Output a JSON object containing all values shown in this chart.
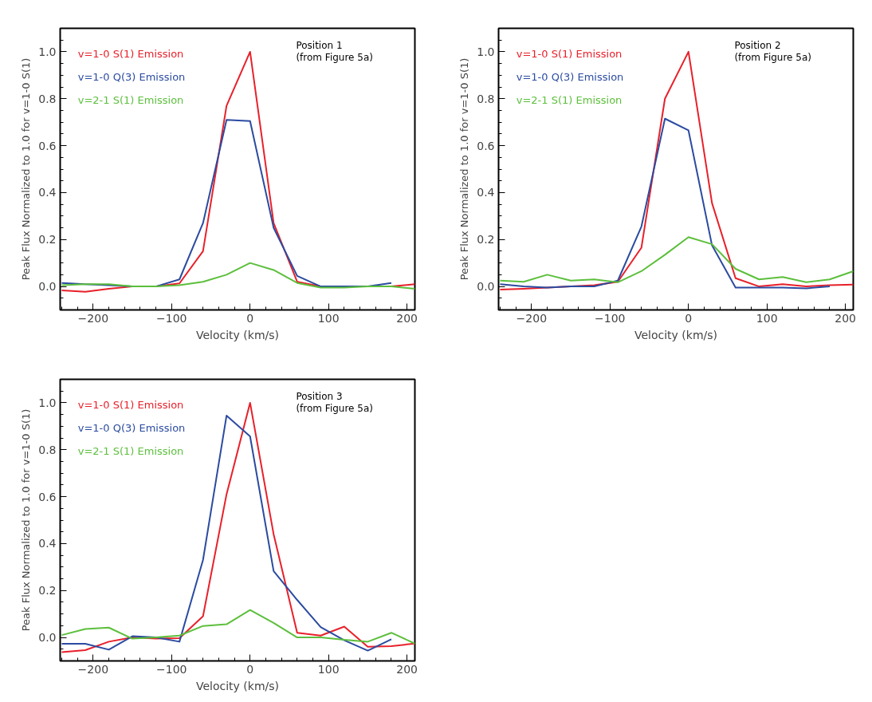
{
  "chart_data": [
    {
      "type": "line",
      "xlabel": "Velocity (km/s)",
      "ylabel": "Peak Flux Normalized to 1.0 for v=1-0 S(1)",
      "annotations": [
        "Position 1\n(from Figure 5a)"
      ],
      "legend": "top left",
      "x": [
        -240,
        -210,
        -180,
        -150,
        -120,
        -90,
        -60,
        -30,
        0,
        30,
        60,
        90,
        120,
        150,
        180,
        210
      ],
      "xlim": [
        -242,
        210
      ],
      "ylim": [
        -0.1,
        1.1
      ],
      "xticks": [
        -200,
        -100,
        0,
        100,
        200
      ],
      "yticks": [
        {
          "value": 0,
          "label": "0.0"
        },
        {
          "value": 0.2,
          "label": "0.2"
        },
        {
          "value": 0.4,
          "label": "0.4"
        },
        {
          "value": 0.6,
          "label": "0.6"
        },
        {
          "value": 0.8,
          "label": "0.8"
        },
        {
          "value": 1.0,
          "label": "1.0"
        }
      ],
      "series": [
        {
          "name": "v=1-0 S(1) Emission",
          "color": "#e8202a",
          "values": [
            -0.017,
            -0.023,
            -0.01,
            0,
            0,
            0.013,
            0.15,
            0.77,
            1.0,
            0.27,
            0.02,
            0,
            0,
            0,
            0,
            0.01
          ]
        },
        {
          "name": "v=1-0 Q(3) Emission",
          "color": "#2b4ba0",
          "values": [
            0.015,
            0.01,
            0.005,
            0,
            0,
            0.03,
            0.27,
            0.71,
            0.705,
            0.25,
            0.045,
            0,
            0,
            0,
            0.015,
            null
          ]
        },
        {
          "name": "v=2-1 S(1) Emission",
          "color": "#5cbf3c",
          "values": [
            0.005,
            0.01,
            0.01,
            0,
            0,
            0.005,
            0.02,
            0.05,
            0.1,
            0.07,
            0.015,
            -0.005,
            -0.005,
            0,
            0,
            -0.01
          ]
        }
      ]
    },
    {
      "type": "line",
      "xlabel": "Velocity (km/s)",
      "ylabel": "Peak Flux Normalized to 1.0 for v=1-0 S(1)",
      "annotations": [
        "Position 2\n(from Figure 5a)"
      ],
      "legend": "top left",
      "x": [
        -240,
        -210,
        -180,
        -150,
        -120,
        -90,
        -60,
        -30,
        0,
        30,
        60,
        90,
        120,
        150,
        180,
        210
      ],
      "xlim": [
        -242,
        210
      ],
      "ylim": [
        -0.1,
        1.1
      ],
      "xticks": [
        -200,
        -100,
        0,
        100,
        200
      ],
      "yticks": [
        {
          "value": 0,
          "label": "0.0"
        },
        {
          "value": 0.2,
          "label": "0.2"
        },
        {
          "value": 0.4,
          "label": "0.4"
        },
        {
          "value": 0.6,
          "label": "0.6"
        },
        {
          "value": 0.8,
          "label": "0.8"
        },
        {
          "value": 1.0,
          "label": "1.0"
        }
      ],
      "series": [
        {
          "name": "v=1-0 S(1) Emission",
          "color": "#e8202a",
          "values": [
            -0.013,
            -0.01,
            -0.005,
            0,
            0.005,
            0.02,
            0.165,
            0.8,
            1.0,
            0.355,
            0.035,
            0,
            0.01,
            0,
            0.005,
            0.008
          ]
        },
        {
          "name": "v=1-0 Q(3) Emission",
          "color": "#2b4ba0",
          "values": [
            0.01,
            0,
            -0.005,
            0,
            0,
            0.025,
            0.255,
            0.715,
            0.665,
            0.175,
            -0.005,
            -0.005,
            -0.005,
            -0.008,
            0,
            null
          ]
        },
        {
          "name": "v=2-1 S(1) Emission",
          "color": "#5cbf3c",
          "values": [
            0.025,
            0.02,
            0.05,
            0.025,
            0.03,
            0.018,
            0.065,
            0.135,
            0.21,
            0.18,
            0.075,
            0.03,
            0.04,
            0.018,
            0.03,
            0.065
          ]
        }
      ]
    },
    {
      "type": "line",
      "xlabel": "Velocity (km/s)",
      "ylabel": "Peak Flux Normalized to 1.0 for v=1-0 S(1)",
      "annotations": [
        "Position 3\n(from Figure 5a)"
      ],
      "legend": "top left",
      "x": [
        -240,
        -210,
        -180,
        -150,
        -120,
        -90,
        -60,
        -30,
        0,
        30,
        60,
        90,
        120,
        150,
        180,
        210
      ],
      "xlim": [
        -242,
        210
      ],
      "ylim": [
        -0.1,
        1.1
      ],
      "xticks": [
        -200,
        -100,
        0,
        100,
        200
      ],
      "yticks": [
        {
          "value": 0,
          "label": "0.0"
        },
        {
          "value": 0.2,
          "label": "0.2"
        },
        {
          "value": 0.4,
          "label": "0.4"
        },
        {
          "value": 0.6,
          "label": "0.6"
        },
        {
          "value": 0.8,
          "label": "0.8"
        },
        {
          "value": 1.0,
          "label": "1.0"
        }
      ],
      "series": [
        {
          "name": "v=1-0 S(1) Emission",
          "color": "#e8202a",
          "values": [
            -0.063,
            -0.054,
            -0.018,
            0,
            -0.005,
            -0.003,
            0.09,
            0.61,
            1.0,
            0.44,
            0.02,
            0.008,
            0.046,
            -0.04,
            -0.037,
            -0.026
          ]
        },
        {
          "name": "v=1-0 Q(3) Emission",
          "color": "#2b4ba0",
          "values": [
            -0.027,
            -0.027,
            -0.052,
            0.005,
            0,
            -0.018,
            0.33,
            0.945,
            0.857,
            0.283,
            0.16,
            0.044,
            -0.012,
            -0.056,
            -0.008,
            null
          ]
        },
        {
          "name": "v=2-1 S(1) Emission",
          "color": "#5cbf3c",
          "values": [
            0.01,
            0.036,
            0.042,
            -0.005,
            0,
            0.008,
            0.049,
            0.056,
            0.117,
            0.062,
            0,
            0,
            -0.01,
            -0.018,
            0.02,
            -0.026
          ]
        }
      ]
    }
  ]
}
